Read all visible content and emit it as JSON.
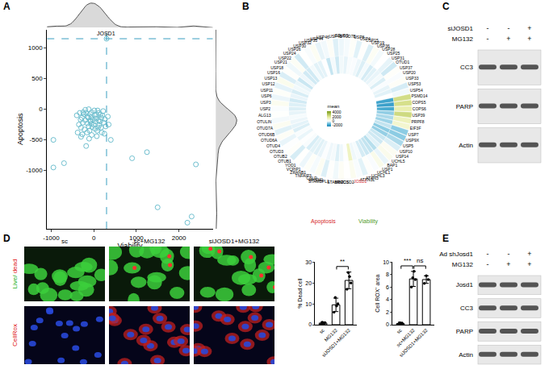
{
  "panel_labels": [
    "A",
    "B",
    "C",
    "D",
    "E"
  ],
  "dubs": {
    "names": [
      "OTUD5",
      "OTUD7B",
      "USP8",
      "USP4",
      "USP15",
      "USP19",
      "USP36",
      "USP28",
      "USP25",
      "USP31",
      "OTUD1",
      "USP37",
      "USP20",
      "USP33",
      "USP53",
      "USP54",
      "PSMD14",
      "COPS5",
      "COPS6",
      "USP39",
      "PRPF8",
      "EIF3F",
      "USP7",
      "USP9X",
      "USP5",
      "USP10",
      "USP14",
      "UCHL5",
      "BAP1",
      "USP1",
      "UCHL1",
      "UCHL3",
      "ATXN3",
      "ATXN3L",
      "JOSD1",
      "JOSD2",
      "BRCC3",
      "STAMBP",
      "STAMBPL1",
      "MYSM1",
      "CYLD",
      "TNFAIP3",
      "ZRANB1",
      "VCPIP1",
      "YOD1",
      "OTUB1",
      "OTUB2",
      "OTUD3",
      "OTUD4",
      "OTUD6A",
      "OTUD6B",
      "OTUD7A",
      "OTULIN",
      "ALG13",
      "USP2",
      "USP3",
      "USP6",
      "USP11",
      "USP12",
      "USP13",
      "USP16",
      "USP18",
      "USP21",
      "USP22",
      "USP24",
      "USP26",
      "USP30",
      "USP32",
      "USP35",
      "USP44",
      "USP46",
      "USP48"
    ],
    "viability": [
      -150,
      -80,
      120,
      -250,
      50,
      -300,
      200,
      -100,
      0,
      -200,
      -400,
      100,
      -50,
      150,
      -350,
      -120,
      2300,
      2200,
      1500,
      2400,
      1250,
      900,
      -950,
      -950,
      -700,
      -300,
      250,
      350,
      -180,
      400,
      -50,
      80,
      -230,
      -60,
      300,
      10,
      180,
      -120,
      60,
      -280,
      220,
      -80,
      130,
      -150,
      30,
      -330,
      90,
      -20,
      -180,
      170,
      -260,
      260,
      -90,
      40,
      -40,
      280,
      -160,
      110,
      -220,
      330,
      -310,
      70,
      -130,
      190,
      -380,
      20,
      -60,
      230,
      -200,
      -110,
      150,
      -270
    ],
    "apoptosis": [
      -120,
      -200,
      -60,
      -50,
      -150,
      -300,
      -100,
      -350,
      -250,
      -180,
      -100,
      -300,
      -50,
      -200,
      -250,
      0,
      -1750,
      -1850,
      -1600,
      -900,
      -700,
      -800,
      -500,
      -950,
      -880,
      -450,
      -400,
      -250,
      -600,
      -500,
      -420,
      -350,
      -80,
      -130,
      1150,
      -20,
      -140,
      -280,
      -90,
      -140,
      -30,
      -180,
      -260,
      -230,
      -320,
      -60,
      -20,
      -170,
      -60,
      -300,
      -220,
      -160,
      -80,
      -200,
      -290,
      -280,
      -380,
      -180,
      -330,
      -120,
      -170,
      -440,
      -140,
      -380,
      -380,
      -100,
      -240,
      -220,
      -10,
      -480,
      -90,
      -410
    ]
  },
  "chart_data": [
    {
      "type": "scatter",
      "x_label": "Viability",
      "y_label": "Apoptosis",
      "xlim": [
        -1100,
        2800
      ],
      "ylim": [
        -1950,
        1300
      ],
      "xticks": [
        -1000,
        0,
        1000,
        2000
      ],
      "yticks": [
        -1000,
        -500,
        0,
        500,
        1000
      ],
      "annotations": [
        {
          "text": "JOSD1"
        }
      ],
      "color": "#6fbfcf",
      "marker": "open circle",
      "line_style": "dashed",
      "grid": false
    },
    {
      "type": "circular heatmap",
      "series": [
        {
          "name": "Apoptosis",
          "color": "#d62728"
        },
        {
          "name": "Viability",
          "color": "#4f9a2a"
        }
      ],
      "colorbar_title": "mean",
      "color_range": [
        -2500,
        4500
      ],
      "color_ticks": [
        4000,
        2000,
        0,
        -2000
      ]
    },
    {
      "type": "bar",
      "y_label": "% Dead cell",
      "categories": [
        "sc",
        "MG132",
        "siJOSD1+MG132"
      ],
      "values": [
        0.8,
        9.5,
        21.2
      ],
      "errors": [
        0.5,
        3.2,
        4.0
      ],
      "points": [
        [
          0.3,
          1.2,
          0.5,
          1.0
        ],
        [
          6,
          13,
          9,
          10
        ],
        [
          17,
          25,
          23,
          20
        ]
      ],
      "ylim": [
        0,
        30
      ],
      "yticks": [
        0,
        10,
        20,
        30
      ],
      "color": "#ffffff",
      "significance": [
        {
          "categories": [
            "MG132",
            "siJOSD1+MG132"
          ],
          "label": "**"
        }
      ]
    },
    {
      "type": "bar",
      "y_label": "Cell ROX⁺ area",
      "categories": [
        "sc",
        "sc+MG132",
        "siJOSD1+MG132"
      ],
      "values": [
        0.2,
        7.3,
        7.2
      ],
      "errors": [
        0.2,
        1.2,
        0.6
      ],
      "points": [
        [
          0.1,
          0.3,
          0.2,
          0.2
        ],
        [
          6,
          7.5,
          8.5,
          7.2
        ],
        [
          6.6,
          7.8,
          7.2
        ]
      ],
      "ylim": [
        0,
        10
      ],
      "yticks": [
        0,
        2,
        4,
        6,
        8,
        10
      ],
      "color": "#ffffff",
      "significance": [
        {
          "categories": [
            "sc",
            "sc+MG132"
          ],
          "label": "***"
        },
        {
          "categories": [
            "sc+MG132",
            "siJOSD1+MG132"
          ],
          "label": "ns"
        }
      ]
    }
  ],
  "blots": [
    {
      "conditions": [
        {
          "label": "siJOSD1",
          "marks": [
            "-",
            "-",
            "+"
          ]
        },
        {
          "label": "MG132",
          "marks": [
            "-",
            "+",
            "+"
          ]
        }
      ],
      "bands": [
        "CC3",
        "PARP",
        "Actin"
      ]
    },
    {
      "conditions": [
        {
          "label": "Ad shJosd1",
          "marks": [
            "-",
            "-",
            "+"
          ]
        },
        {
          "label": "MG132",
          "marks": [
            "-",
            "+",
            "+"
          ]
        }
      ],
      "bands": [
        "Josd1",
        "CC3",
        "PARP",
        "Actin"
      ]
    }
  ],
  "microscopy": {
    "columns": [
      "sc",
      "sc+MG132",
      "siJOSD1+MG132"
    ],
    "rows": [
      {
        "label": [
          {
            "text": "Live/",
            "color": "#22b022"
          },
          {
            "text": " dead",
            "color": "#e02020"
          }
        ]
      },
      {
        "label": [
          {
            "text": "CellRox",
            "color": "#e02020"
          }
        ]
      }
    ]
  }
}
